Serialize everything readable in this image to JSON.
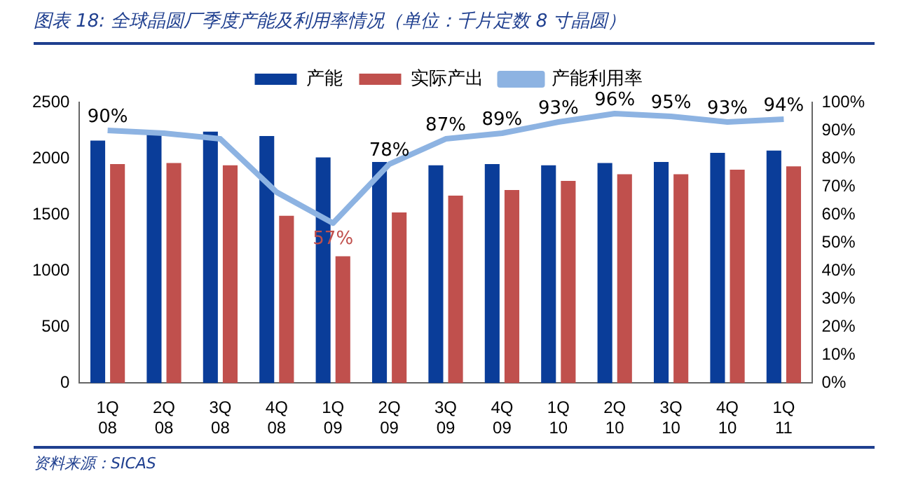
{
  "chart_data": {
    "type": "bar",
    "title": "图表 18:  全球晶圆厂季度产能及利用率情况（单位：千片定数 8 寸晶圆）",
    "categories": [
      "1Q\n08",
      "2Q\n08",
      "3Q\n08",
      "4Q\n08",
      "1Q\n09",
      "2Q\n09",
      "3Q\n09",
      "4Q\n09",
      "1Q\n10",
      "2Q\n10",
      "3Q\n10",
      "4Q\n10",
      "1Q\n11"
    ],
    "series": [
      {
        "name": "产能",
        "color": "#0a3d99",
        "values": [
          2160,
          2220,
          2240,
          2200,
          2010,
          1970,
          1940,
          1950,
          1940,
          1960,
          1970,
          2050,
          2070
        ]
      },
      {
        "name": "实际产出",
        "color": "#c0504d",
        "values": [
          1950,
          1960,
          1940,
          1490,
          1130,
          1520,
          1670,
          1720,
          1800,
          1860,
          1860,
          1900,
          1930
        ]
      },
      {
        "name": "产能利用率",
        "type": "line",
        "axis": "y2",
        "color": "#8db3e2",
        "values": [
          90,
          89,
          87,
          68,
          57,
          78,
          87,
          89,
          93,
          96,
          95,
          93,
          94
        ],
        "value_labels": [
          "90%",
          null,
          null,
          null,
          "57%",
          "78%",
          "87%",
          "89%",
          "93%",
          "96%",
          "95%",
          "93%",
          "94%"
        ]
      }
    ],
    "ylim": [
      0,
      2500
    ],
    "yticks": [
      0,
      500,
      1000,
      1500,
      2000,
      2500
    ],
    "y2lim": [
      0,
      100
    ],
    "y2ticks": [
      {
        "value": 0,
        "label": "0%"
      },
      {
        "value": 10,
        "label": "10%"
      },
      {
        "value": 20,
        "label": "20%"
      },
      {
        "value": 30,
        "label": "30%"
      },
      {
        "value": 40,
        "label": "40%"
      },
      {
        "value": 50,
        "label": "50%"
      },
      {
        "value": 60,
        "label": "60%"
      },
      {
        "value": 70,
        "label": "70%"
      },
      {
        "value": 80,
        "label": "80%"
      },
      {
        "value": 90,
        "label": "90%"
      },
      {
        "value": 100,
        "label": "100%"
      }
    ],
    "grid": false,
    "legend": "top",
    "marker": "none",
    "line_style": "solid",
    "annotations": [
      "资料来源：SICAS"
    ]
  }
}
